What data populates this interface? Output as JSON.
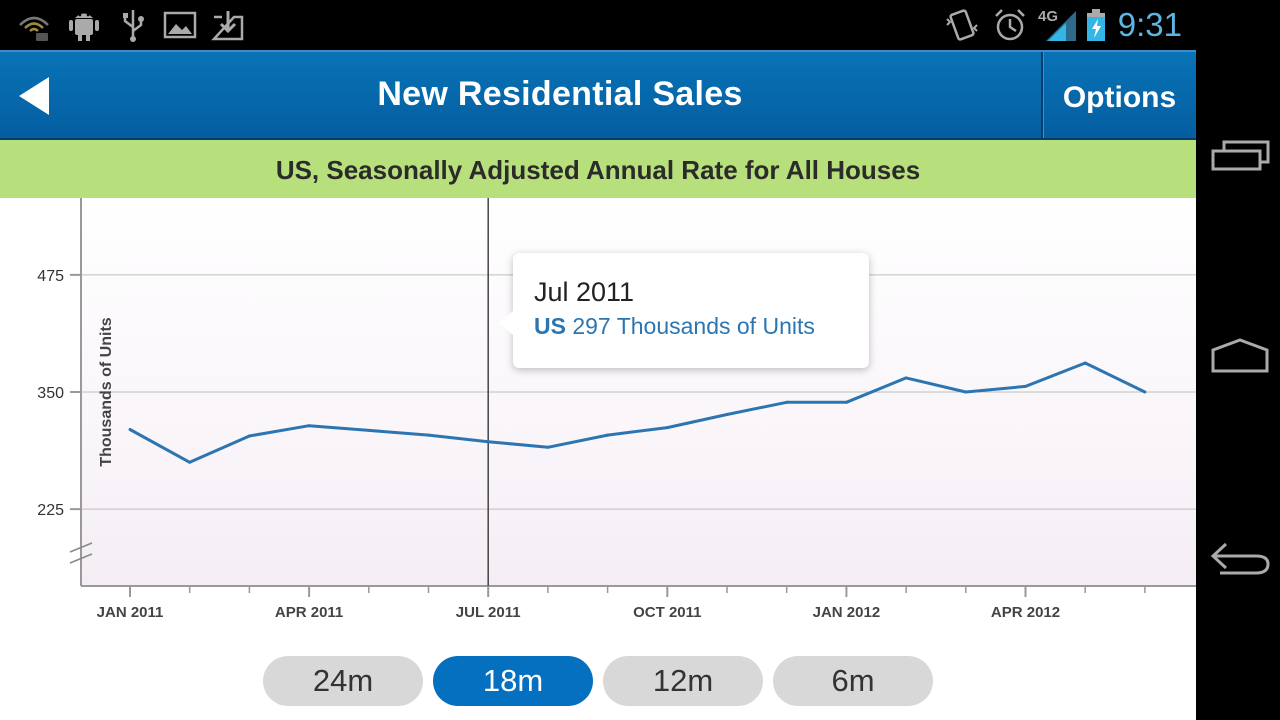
{
  "status_bar": {
    "time": "9:31",
    "network": "4G",
    "left_icons": [
      "wifi-signal-icon",
      "android-debug-icon",
      "usb-icon",
      "image-icon",
      "download-icon"
    ],
    "right_icons": [
      "vibrate-icon",
      "alarm-icon",
      "network-4g-icon",
      "battery-charging-icon"
    ]
  },
  "header": {
    "title": "New Residential Sales",
    "options_label": "Options",
    "back_icon": "back-arrow-icon",
    "color": "#0668ab"
  },
  "subtitle": "US, Seasonally Adjusted Annual Rate for All Houses",
  "subtitle_color": "#b7e07d",
  "tooltip": {
    "date": "Jul 2011",
    "series": "US",
    "value_text": "297 Thousands of Units"
  },
  "range_buttons": [
    {
      "label": "24m",
      "active": false
    },
    {
      "label": "18m",
      "active": true
    },
    {
      "label": "12m",
      "active": false
    },
    {
      "label": "6m",
      "active": false
    }
  ],
  "nav": [
    "recent-apps-icon",
    "home-icon",
    "back-icon"
  ],
  "chart_data": {
    "type": "line",
    "ylabel": "Thousands of Units",
    "yticks": [
      225,
      350,
      475
    ],
    "ylim": [
      175,
      540
    ],
    "axis_break": true,
    "xtick_labels": [
      "JAN 2011",
      "APR 2011",
      "JUL 2011",
      "OCT 2011",
      "JAN 2012",
      "APR 2012"
    ],
    "x": [
      "Jan 2011",
      "Feb 2011",
      "Mar 2011",
      "Apr 2011",
      "May 2011",
      "Jun 2011",
      "Jul 2011",
      "Aug 2011",
      "Sep 2011",
      "Oct 2011",
      "Nov 2011",
      "Dec 2011",
      "Jan 2012",
      "Feb 2012",
      "Mar 2012",
      "Apr 2012",
      "May 2012",
      "Jun 2012"
    ],
    "series": [
      {
        "name": "US",
        "color": "#2c75b1",
        "values": [
          310,
          275,
          303,
          314,
          309,
          304,
          297,
          291,
          304,
          312,
          326,
          339,
          339,
          365,
          350,
          356,
          381,
          350
        ]
      }
    ],
    "crosshair_index": 6,
    "grid": "horizontal",
    "legend": "none"
  }
}
